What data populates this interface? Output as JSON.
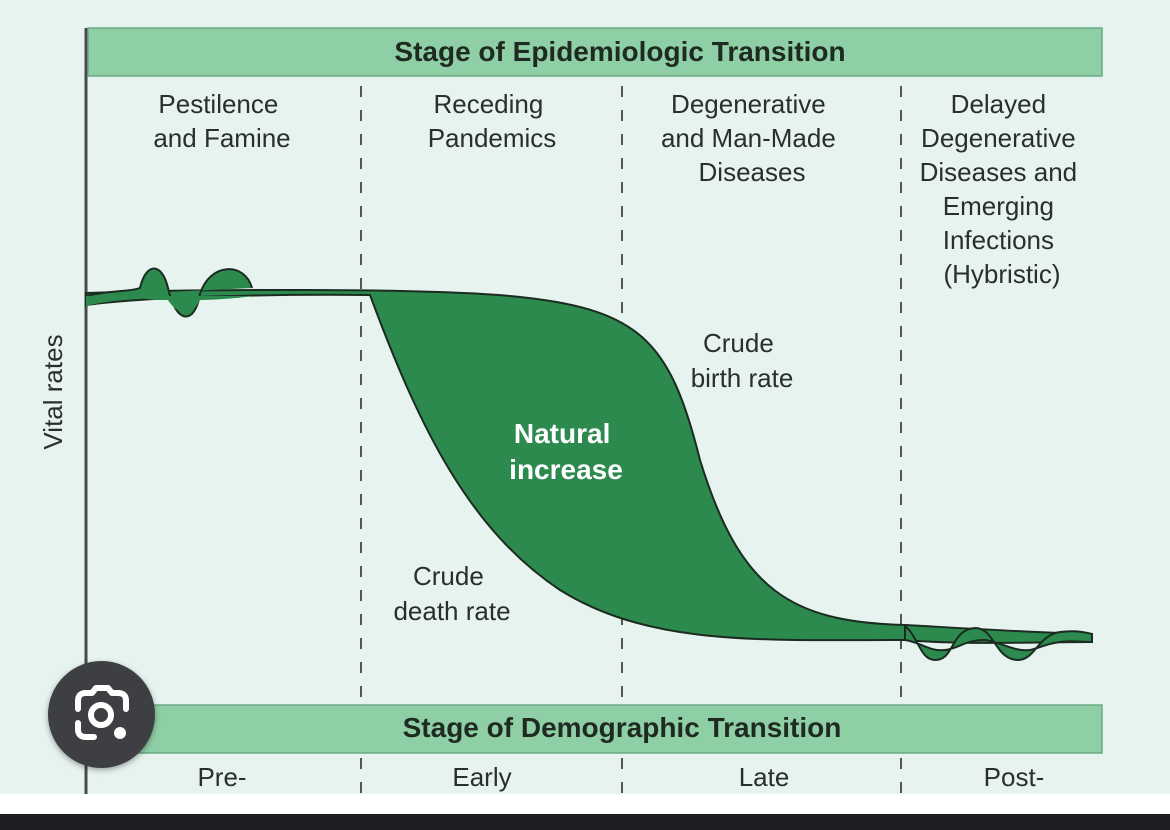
{
  "header_banner": "Stage of Epidemiologic Transition",
  "stages": [
    {
      "lines": [
        "Pestilence",
        "and Famine"
      ]
    },
    {
      "lines": [
        "Receding",
        "Pandemics"
      ]
    },
    {
      "lines": [
        "Degenerative",
        "and Man-Made",
        "Diseases"
      ]
    },
    {
      "lines": [
        "Delayed",
        "Degenerative",
        "Diseases and",
        "Emerging",
        "Infections",
        "(Hybristic)"
      ]
    }
  ],
  "y_axis_label": "Vital rates",
  "curve_labels": {
    "birth": [
      "Crude",
      "birth rate"
    ],
    "death": [
      "Crude",
      "death rate"
    ],
    "natural_increase": [
      "Natural",
      "increase"
    ]
  },
  "footer_banner": "Stage of Demographic Transition",
  "demographic_stages": [
    "Pre-",
    "Early",
    "Late",
    "Post-"
  ],
  "colors": {
    "banner": "#8fcfa5",
    "fill": "#2d8a4e",
    "background": "#e6f3ef"
  },
  "lens_icon": "google-lens-icon"
}
